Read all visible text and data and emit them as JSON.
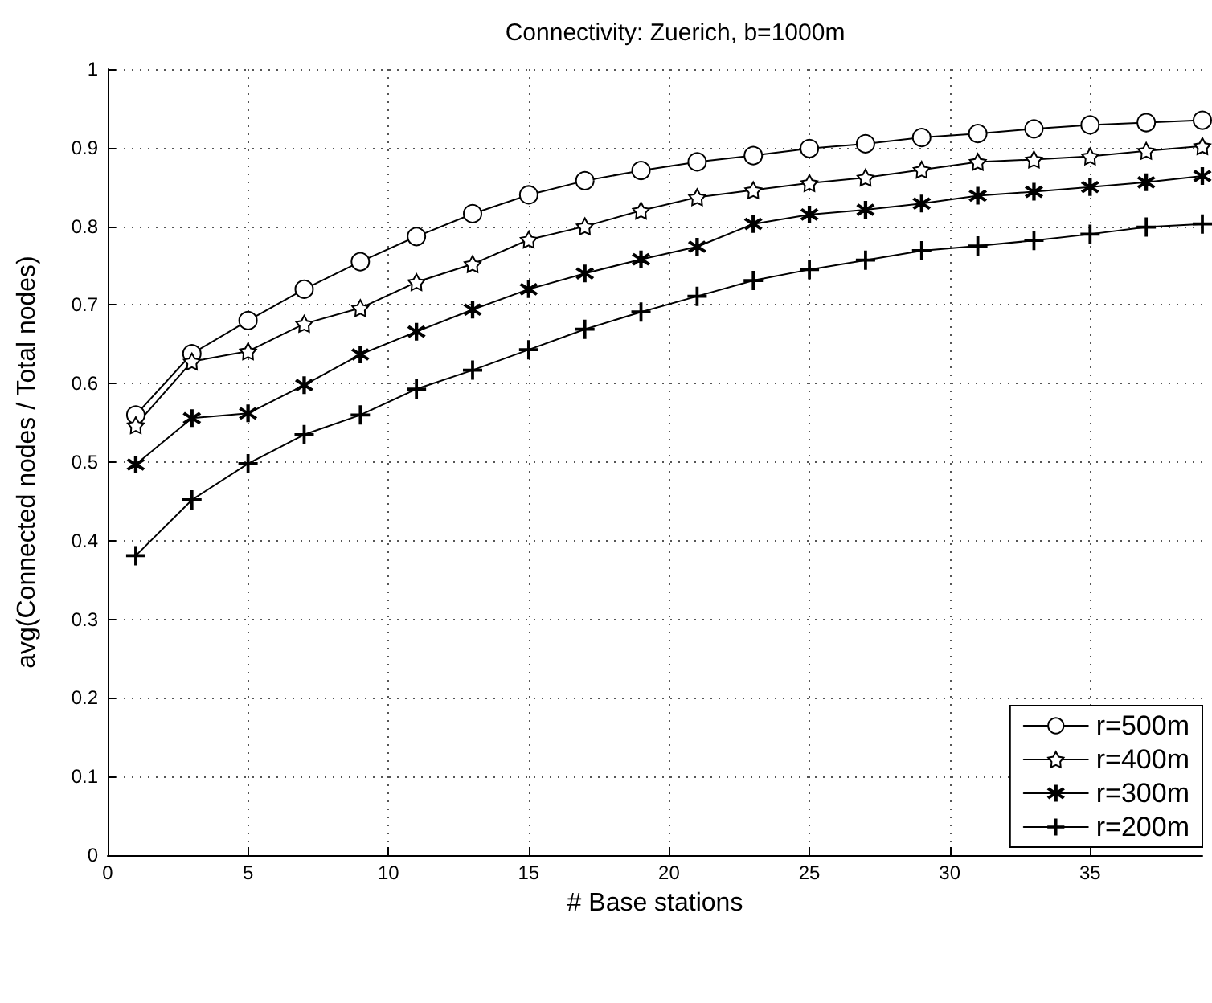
{
  "chart_data": {
    "type": "line",
    "title": "Connectivity: Zuerich, b=1000m",
    "xlabel": "# Base stations",
    "ylabel": "avg(Connected nodes / Total nodes)",
    "x": [
      1,
      3,
      5,
      7,
      9,
      11,
      13,
      15,
      17,
      19,
      21,
      23,
      25,
      27,
      29,
      31,
      33,
      35,
      37,
      39
    ],
    "xlim": [
      0,
      39
    ],
    "xticks": [
      0,
      5,
      10,
      15,
      20,
      25,
      30,
      35
    ],
    "ylim": [
      0,
      1
    ],
    "yticks": [
      0,
      0.1,
      0.2,
      0.3,
      0.4,
      0.5,
      0.6,
      0.7,
      0.8,
      0.9,
      1
    ],
    "grid": true,
    "legend": "bottom right",
    "line_style": "solid",
    "series": [
      {
        "name": "r=500m",
        "color": "#000000",
        "marker": "circle",
        "values": [
          0.56,
          0.638,
          0.68,
          0.72,
          0.755,
          0.787,
          0.816,
          0.84,
          0.858,
          0.871,
          0.882,
          0.89,
          0.899,
          0.905,
          0.913,
          0.918,
          0.924,
          0.929,
          0.932,
          0.935
        ]
      },
      {
        "name": "r=400m",
        "color": "#000000",
        "marker": "star",
        "values": [
          0.547,
          0.628,
          0.641,
          0.676,
          0.696,
          0.729,
          0.752,
          0.783,
          0.8,
          0.82,
          0.837,
          0.846,
          0.855,
          0.862,
          0.872,
          0.882,
          0.885,
          0.889,
          0.896,
          0.902
        ]
      },
      {
        "name": "r=300m",
        "color": "#000000",
        "marker": "cross",
        "values": [
          0.497,
          0.556,
          0.562,
          0.598,
          0.637,
          0.666,
          0.694,
          0.72,
          0.74,
          0.758,
          0.774,
          0.803,
          0.815,
          0.821,
          0.829,
          0.839,
          0.844,
          0.85,
          0.856,
          0.864
        ]
      },
      {
        "name": "r=200m",
        "color": "#000000",
        "marker": "plus",
        "values": [
          0.381,
          0.452,
          0.498,
          0.535,
          0.56,
          0.593,
          0.617,
          0.643,
          0.669,
          0.691,
          0.711,
          0.731,
          0.745,
          0.757,
          0.769,
          0.775,
          0.782,
          0.79,
          0.799,
          0.803
        ]
      }
    ]
  }
}
